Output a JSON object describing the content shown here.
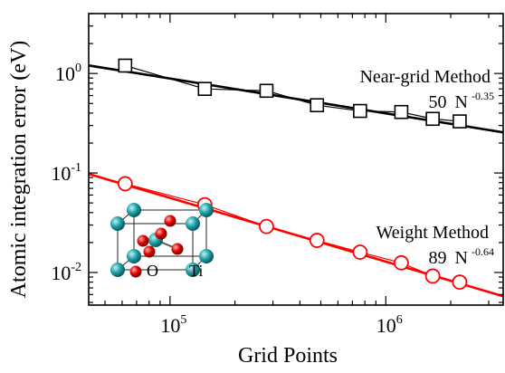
{
  "chart_data": {
    "type": "scatter",
    "title": "",
    "xlabel": "Grid Points",
    "ylabel": "Atomic integration error (eV)",
    "xscale": "log",
    "yscale": "log",
    "xlim": [
      42000,
      3500000
    ],
    "ylim": [
      0.0047,
      4.0
    ],
    "grid": false,
    "x_ticks": [
      {
        "value": 100000,
        "base": "10",
        "exp": "5"
      },
      {
        "value": 1000000,
        "base": "10",
        "exp": "6"
      }
    ],
    "y_ticks": [
      {
        "value": 0.01,
        "base": "10",
        "exp": "-2"
      },
      {
        "value": 0.1,
        "base": "10",
        "exp": "-1"
      },
      {
        "value": 1,
        "base": "10",
        "exp": "0"
      }
    ],
    "series": [
      {
        "color": "#000000",
        "marker": "square",
        "x": [
          62000,
          145000,
          280000,
          480000,
          760000,
          1180000,
          1650000,
          2200000
        ],
        "y": [
          1.2,
          0.7,
          0.67,
          0.48,
          0.42,
          0.41,
          0.35,
          0.33
        ],
        "fit": {
          "label_text": "Near-grid Method",
          "coef": "50",
          "variable": "N",
          "exponent": "-0.35",
          "a": 50,
          "b": -0.35
        }
      },
      {
        "color": "#ff0000",
        "marker": "circle",
        "x": [
          62000,
          145000,
          280000,
          480000,
          760000,
          1180000,
          1650000,
          2200000
        ],
        "y": [
          0.078,
          0.048,
          0.029,
          0.021,
          0.016,
          0.0125,
          0.0092,
          0.008
        ],
        "fit": {
          "label_text": "Weight Method",
          "coef": "89",
          "variable": "N",
          "exponent": "-0.64",
          "a": 89,
          "b": -0.64
        }
      }
    ],
    "inset": {
      "atom_labels": [
        "O",
        "Ti"
      ],
      "colors": {
        "oxygen": "#e00000",
        "titanium": "#1f9fa6"
      }
    }
  }
}
